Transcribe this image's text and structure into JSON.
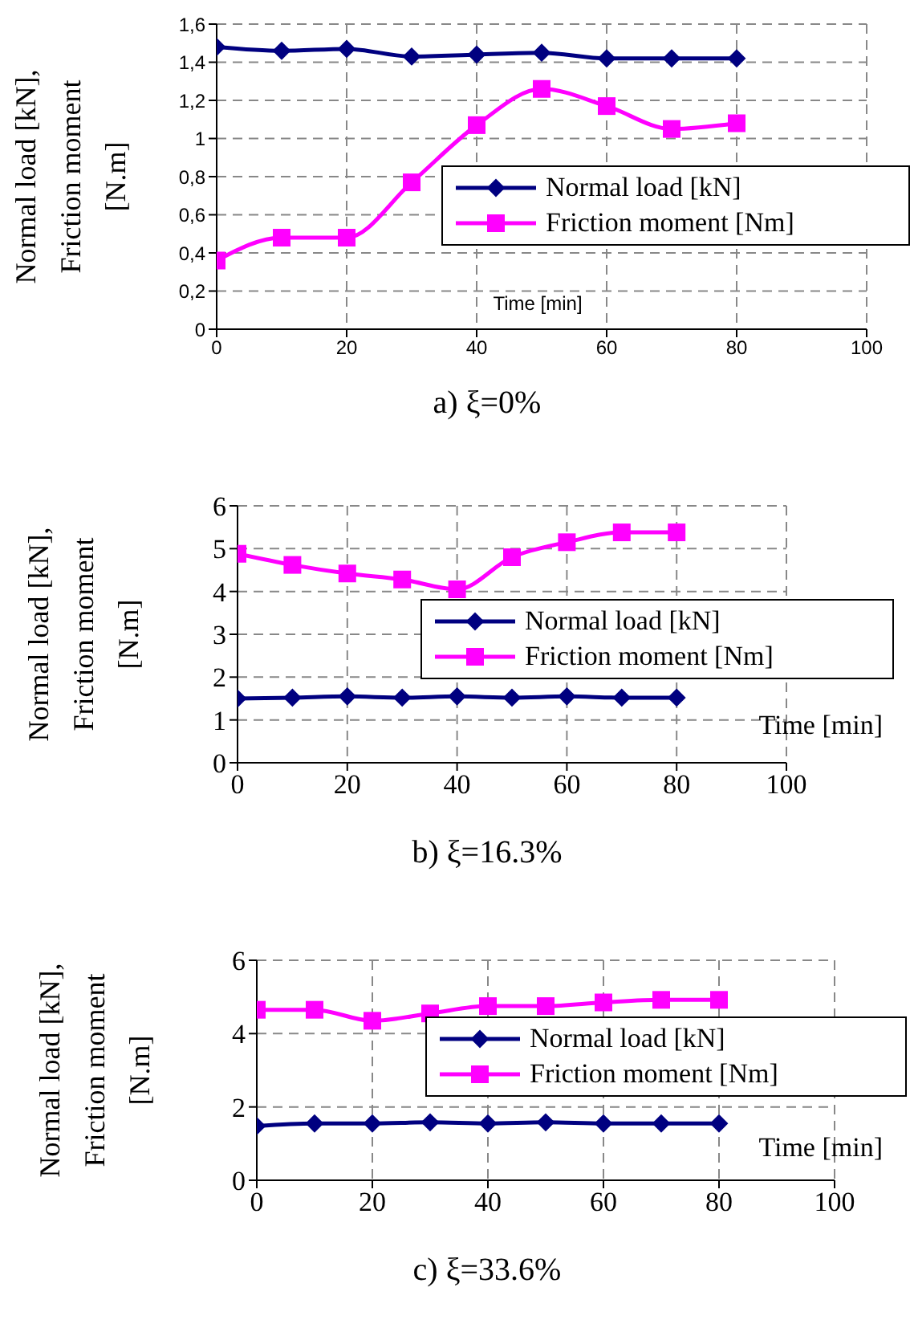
{
  "chart_data": [
    {
      "type": "line",
      "title": "a)    ξ=0%",
      "xlabel": "Time [min]",
      "ylabel": "Normal load [kN],\nFriction moment\n[N.m]",
      "x": [
        0,
        10,
        20,
        30,
        40,
        50,
        60,
        70,
        80
      ],
      "xlim": [
        0,
        100
      ],
      "xticks": [
        0,
        20,
        40,
        60,
        80,
        100
      ],
      "ylim": [
        0,
        1.6
      ],
      "yticks": [
        0,
        {
          "value": 0.2,
          "label": "0,2"
        },
        {
          "value": 0.4,
          "label": "0,4"
        },
        {
          "value": 0.6,
          "label": "0,6"
        },
        {
          "value": 0.8,
          "label": "0,8"
        },
        1,
        {
          "value": 1.2,
          "label": "1,2"
        },
        {
          "value": 1.4,
          "label": "1,4"
        },
        {
          "value": 1.6,
          "label": "1,6"
        }
      ],
      "grid": true,
      "legend": "right",
      "series": [
        {
          "name": "Normal load [kN]",
          "color": "#000080",
          "marker": "diamond",
          "values": [
            1.48,
            1.46,
            1.47,
            1.43,
            1.44,
            1.45,
            1.42,
            1.42,
            1.42
          ]
        },
        {
          "name": "Friction moment [Nm]",
          "color": "#ff00ff",
          "marker": "square",
          "values": [
            0.36,
            0.48,
            0.48,
            0.77,
            1.07,
            1.26,
            1.17,
            1.05,
            1.08
          ]
        }
      ]
    },
    {
      "type": "line",
      "title": "b) ξ=16.3%",
      "xlabel": "Time [min]",
      "ylabel": "Normal load [kN],\nFriction moment\n[N.m]",
      "x": [
        0,
        10,
        20,
        30,
        40,
        50,
        60,
        70,
        80
      ],
      "xlim": [
        0,
        100
      ],
      "xticks": [
        0,
        20,
        40,
        60,
        80,
        100
      ],
      "ylim": [
        0,
        6
      ],
      "yticks": [
        0,
        1,
        2,
        3,
        4,
        5,
        6
      ],
      "grid": true,
      "legend": "right",
      "series": [
        {
          "name": "Normal load [kN]",
          "color": "#000080",
          "marker": "diamond",
          "values": [
            1.5,
            1.52,
            1.55,
            1.52,
            1.55,
            1.52,
            1.55,
            1.52,
            1.52
          ]
        },
        {
          "name": "Friction moment [Nm]",
          "color": "#ff00ff",
          "marker": "square",
          "values": [
            4.88,
            4.62,
            4.42,
            4.28,
            4.05,
            4.8,
            5.15,
            5.38,
            5.38
          ]
        }
      ]
    },
    {
      "type": "line",
      "title": "c) ξ=33.6%",
      "xlabel": "Time [min]",
      "ylabel": "Normal load [kN],\nFriction moment\n[N.m]",
      "x": [
        0,
        10,
        20,
        30,
        40,
        50,
        60,
        70,
        80
      ],
      "xlim": [
        0,
        100
      ],
      "xticks": [
        0,
        20,
        40,
        60,
        80,
        100
      ],
      "ylim": [
        0,
        6
      ],
      "yticks": [
        0,
        2,
        4,
        6
      ],
      "grid": true,
      "legend": "right",
      "series": [
        {
          "name": "Normal load [kN]",
          "color": "#000080",
          "marker": "diamond",
          "values": [
            1.48,
            1.55,
            1.55,
            1.58,
            1.55,
            1.58,
            1.55,
            1.55,
            1.55
          ]
        },
        {
          "name": "Friction moment [Nm]",
          "color": "#ff00ff",
          "marker": "square",
          "values": [
            4.65,
            4.65,
            4.35,
            4.55,
            4.75,
            4.75,
            4.85,
            4.92,
            4.92
          ]
        }
      ]
    }
  ]
}
